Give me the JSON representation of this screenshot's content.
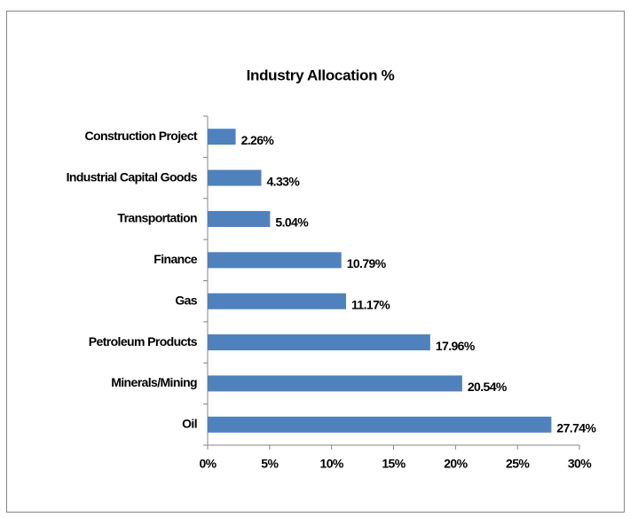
{
  "chart_data": {
    "type": "bar",
    "orientation": "horizontal",
    "title": "Industry Allocation %",
    "categories": [
      "Construction Project",
      "Industrial Capital Goods",
      "Transportation",
      "Finance",
      "Gas",
      "Petroleum Products",
      "Minerals/Mining",
      "Oil"
    ],
    "values": [
      2.26,
      4.33,
      5.04,
      10.79,
      11.17,
      17.96,
      20.54,
      27.74
    ],
    "value_labels": [
      "2.26%",
      "4.33%",
      "5.04%",
      "10.79%",
      "11.17%",
      "17.96%",
      "20.54%",
      "27.74%"
    ],
    "color": "#4f81bd",
    "xlim": [
      0,
      30
    ],
    "xticks": [
      {
        "value": 0,
        "label": "0%"
      },
      {
        "value": 5,
        "label": "5%"
      },
      {
        "value": 10,
        "label": "10%"
      },
      {
        "value": 15,
        "label": "15%"
      },
      {
        "value": 20,
        "label": "20%"
      },
      {
        "value": 25,
        "label": "25%"
      },
      {
        "value": 30,
        "label": "30%"
      }
    ],
    "grid": false
  }
}
